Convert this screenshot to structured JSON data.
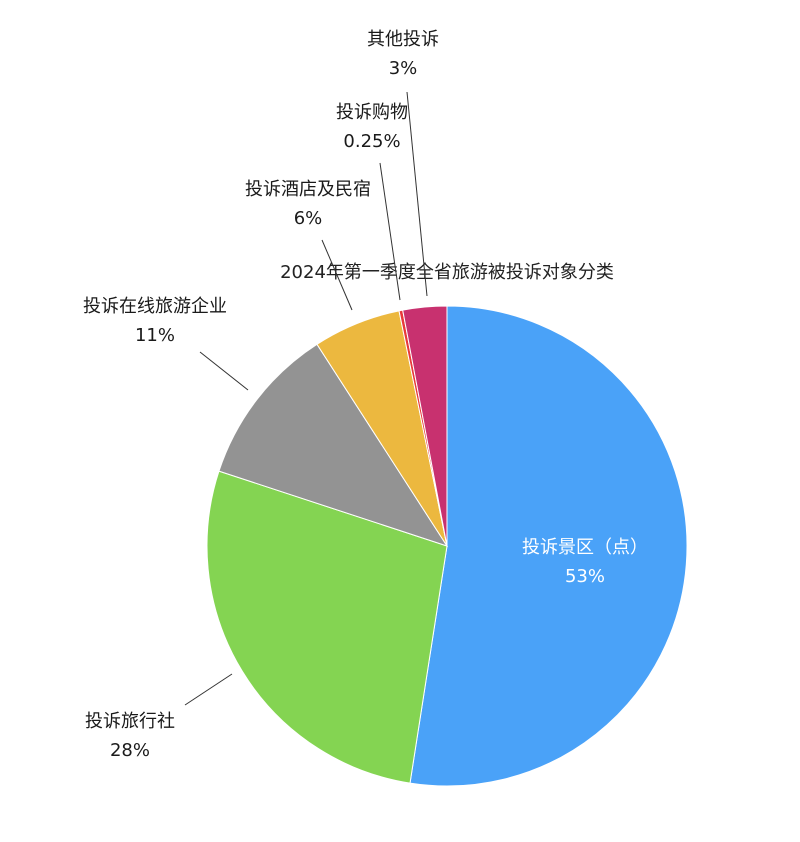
{
  "chart_data": {
    "type": "pie",
    "title": "2024年第一季度全省旅游被投诉对象分类",
    "slices": [
      {
        "label": "投诉景区（点）",
        "percent_label": "53%",
        "value": 53.25,
        "color": "#4aa2f8"
      },
      {
        "label": "投诉旅行社",
        "percent_label": "28%",
        "value": 28,
        "color": "#84d452"
      },
      {
        "label": "投诉在线旅游企业",
        "percent_label": "11%",
        "value": 11,
        "color": "#939393"
      },
      {
        "label": "投诉酒店及民宿",
        "percent_label": "6%",
        "value": 6,
        "color": "#ecb83f"
      },
      {
        "label": "投诉购物",
        "percent_label": "0.25%",
        "value": 0.25,
        "color": "#e8393a"
      },
      {
        "label": "其他投诉",
        "percent_label": "3%",
        "value": 3,
        "color": "#c8316f"
      }
    ],
    "start_position": "12 o'clock",
    "direction": "clockwise"
  }
}
